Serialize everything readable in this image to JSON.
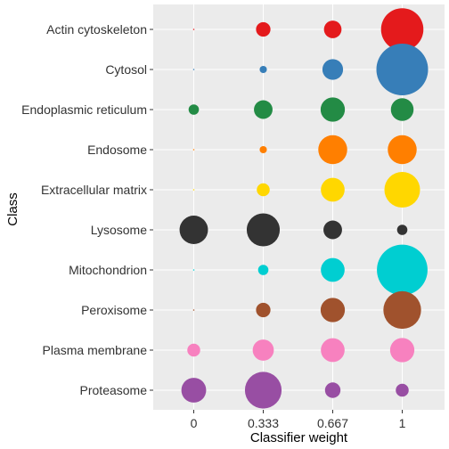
{
  "chart_data": {
    "type": "scatter",
    "xlabel": "Classifier weight",
    "ylabel": "Class",
    "x_ticks": [
      "0",
      "0.333",
      "0.667",
      "1"
    ],
    "categories": [
      "Actin cytoskeleton",
      "Cytosol",
      "Endoplasmic reticulum",
      "Endosome",
      "Extracellular matrix",
      "Lysosome",
      "Mitochondrion",
      "Peroxisome",
      "Plasma membrane",
      "Proteasome"
    ],
    "colors": {
      "Actin cytoskeleton": "#E41A1C",
      "Cytosol": "#377EB8",
      "Endoplasmic reticulum": "#238B45",
      "Endosome": "#FF7F00",
      "Extracellular matrix": "#FFD700",
      "Lysosome": "#333333",
      "Mitochondrion": "#00CED1",
      "Peroxisome": "#A0522D",
      "Plasma membrane": "#F781BF",
      "Proteasome": "#984EA3"
    },
    "size_encoding": "relative bubble size per class and weight",
    "series": [
      {
        "category": "Actin cytoskeleton",
        "sizes": [
          0.01,
          0.28,
          0.34,
          0.82
        ]
      },
      {
        "category": "Cytosol",
        "sizes": [
          0.01,
          0.14,
          0.4,
          1.0
        ]
      },
      {
        "category": "Endoplasmic reticulum",
        "sizes": [
          0.2,
          0.36,
          0.47,
          0.44
        ]
      },
      {
        "category": "Endosome",
        "sizes": [
          0.01,
          0.14,
          0.56,
          0.56
        ]
      },
      {
        "category": "Extracellular matrix",
        "sizes": [
          0.01,
          0.25,
          0.46,
          0.69
        ]
      },
      {
        "category": "Lysosome",
        "sizes": [
          0.55,
          0.64,
          0.36,
          0.2
        ]
      },
      {
        "category": "Mitochondrion",
        "sizes": [
          0.01,
          0.2,
          0.46,
          0.98
        ]
      },
      {
        "category": "Peroxisome",
        "sizes": [
          0.01,
          0.28,
          0.47,
          0.73
        ]
      },
      {
        "category": "Plasma membrane",
        "sizes": [
          0.25,
          0.41,
          0.46,
          0.47
        ]
      },
      {
        "category": "Proteasome",
        "sizes": [
          0.48,
          0.71,
          0.3,
          0.25
        ]
      }
    ],
    "grid": true
  }
}
